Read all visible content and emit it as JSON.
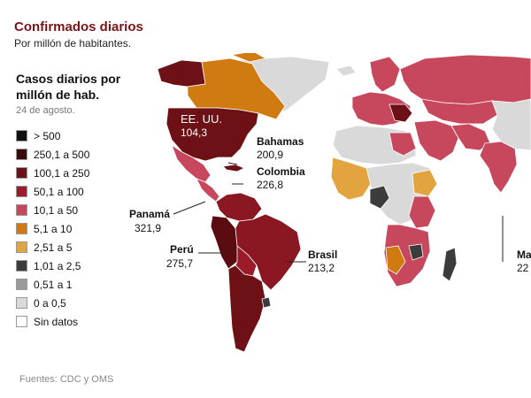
{
  "title": "Confirmados diarios",
  "subtitle": "Por millón de habitantes.",
  "legend": {
    "title_line1": "Casos diarios por",
    "title_line2": "millón de hab.",
    "date": "24 de agosto.",
    "items": [
      {
        "label": "> 500",
        "color": "#111111"
      },
      {
        "label": "250,1 a 500",
        "color": "#3a0c0c"
      },
      {
        "label": "100,1 a 250",
        "color": "#6e1116"
      },
      {
        "label": "50,1 a 100",
        "color": "#9b1b2b"
      },
      {
        "label": "10,1 a 50",
        "color": "#c7475c"
      },
      {
        "label": "5,1 a 10",
        "color": "#d07a12"
      },
      {
        "label": "2,51 a 5",
        "color": "#e2a43e"
      },
      {
        "label": "1,01 a 2,5",
        "color": "#3c3c3c"
      },
      {
        "label": "0,51 a 1",
        "color": "#9a9a9a"
      },
      {
        "label": "0 a 0,5",
        "color": "#d9d9d9"
      },
      {
        "label": "Sin datos",
        "color": "#ffffff"
      }
    ]
  },
  "annotations": {
    "usa_name": "EE. UU.",
    "usa_value": "104,3",
    "bahamas_name": "Bahamas",
    "bahamas_value": "200,9",
    "colombia_name": "Colombia",
    "colombia_value": "226,8",
    "panama_name": "Panamá",
    "panama_value": "321,9",
    "peru_name": "Perú",
    "peru_value": "275,7",
    "brasil_name": "Brasil",
    "brasil_value": "213,2",
    "mexico_name": "Ma",
    "mexico_value": "22"
  },
  "source": "Fuentes: CDC y OMS",
  "colors": {
    "ocean": "#ffffff",
    "land_border": "#ffffff",
    "usa": "#6e1116",
    "canada": "#d07a12",
    "greenland": "#d9d9d9",
    "mexico": "#c7475c",
    "central_america": "#c7475c",
    "south_america_dark": "#6e1116",
    "peru": "#5a0c10",
    "brasil": "#8a1722",
    "africa_light": "#d9d9d9",
    "africa_red": "#c7475c",
    "africa_orange": "#e2a43e",
    "europe": "#c7475c",
    "russia": "#c7475c",
    "asia_red": "#c7475c",
    "asia_grey": "#d9d9d9"
  }
}
